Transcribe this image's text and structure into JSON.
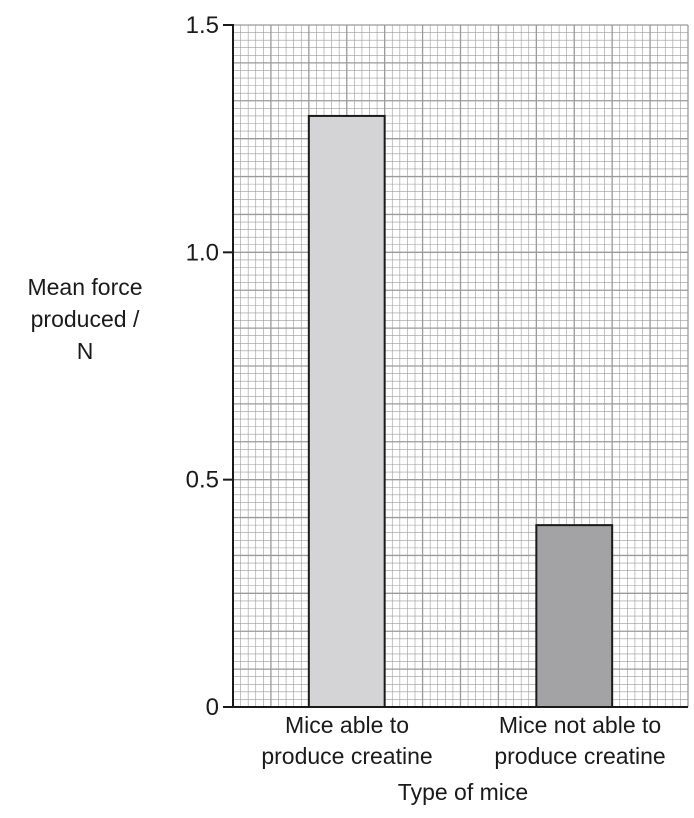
{
  "chart_data": {
    "type": "bar",
    "title": "",
    "ylabel_lines": [
      "Mean force",
      "produced /",
      "N"
    ],
    "xlabel": "Type of mice",
    "categories": [
      [
        "Mice able to",
        "produce creatine"
      ],
      [
        "Mice not able to",
        "produce creatine"
      ]
    ],
    "values": [
      1.3,
      0.4
    ],
    "bar_colors": [
      "#d4d4d6",
      "#a3a3a6"
    ],
    "ylim": [
      0,
      1.5
    ],
    "yticks": [
      0,
      0.5,
      1.0,
      1.5
    ],
    "ytick_labels": [
      "0",
      "0.5",
      "1.0",
      "1.5"
    ],
    "grid": true,
    "grid_color": "#9a9a9a"
  }
}
